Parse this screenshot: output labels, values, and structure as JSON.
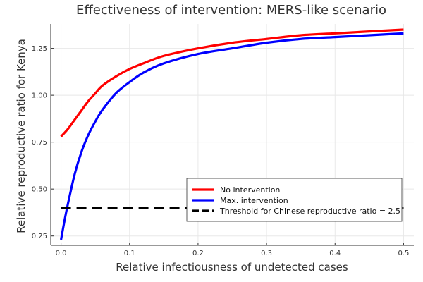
{
  "chart_data": {
    "type": "line",
    "title": "Effectiveness of intervention: MERS-like scenario",
    "xlabel": "Relative infectiousness of undetected cases",
    "ylabel": "Relative reproductive ratio for Kenya",
    "xlim": [
      -0.015,
      0.515
    ],
    "ylim": [
      0.2,
      1.38
    ],
    "xticks": [
      0.0,
      0.1,
      0.2,
      0.3,
      0.4,
      0.5
    ],
    "xtick_labels": [
      "0.0",
      "0.1",
      "0.2",
      "0.3",
      "0.4",
      "0.5"
    ],
    "yticks": [
      0.25,
      0.5,
      0.75,
      1.0,
      1.25
    ],
    "ytick_labels": [
      "0.25",
      "0.50",
      "0.75",
      "1.00",
      "1.25"
    ],
    "grid": true,
    "legend_position": "bottom-right",
    "series": [
      {
        "name": "No intervention",
        "color": "#ff0000",
        "dash": "solid",
        "x": [
          0.0,
          0.01,
          0.02,
          0.03,
          0.04,
          0.05,
          0.06,
          0.08,
          0.1,
          0.12,
          0.15,
          0.2,
          0.25,
          0.3,
          0.35,
          0.4,
          0.45,
          0.5
        ],
        "y": [
          0.78,
          0.82,
          0.87,
          0.92,
          0.97,
          1.01,
          1.05,
          1.1,
          1.14,
          1.17,
          1.21,
          1.25,
          1.28,
          1.3,
          1.32,
          1.33,
          1.34,
          1.35
        ]
      },
      {
        "name": "Max. intervention",
        "color": "#0000ff",
        "dash": "solid",
        "x": [
          0.0,
          0.005,
          0.01,
          0.02,
          0.03,
          0.04,
          0.05,
          0.06,
          0.08,
          0.1,
          0.12,
          0.15,
          0.2,
          0.25,
          0.3,
          0.35,
          0.4,
          0.45,
          0.5
        ],
        "y": [
          0.23,
          0.33,
          0.42,
          0.58,
          0.7,
          0.79,
          0.86,
          0.92,
          1.01,
          1.07,
          1.12,
          1.17,
          1.22,
          1.25,
          1.28,
          1.3,
          1.31,
          1.32,
          1.33
        ]
      },
      {
        "name": "Threshold for Chinese reproductive ratio = 2.5",
        "color": "#000000",
        "dash": "dashed",
        "x": [
          0.0,
          0.5
        ],
        "y": [
          0.4,
          0.4
        ]
      }
    ]
  }
}
